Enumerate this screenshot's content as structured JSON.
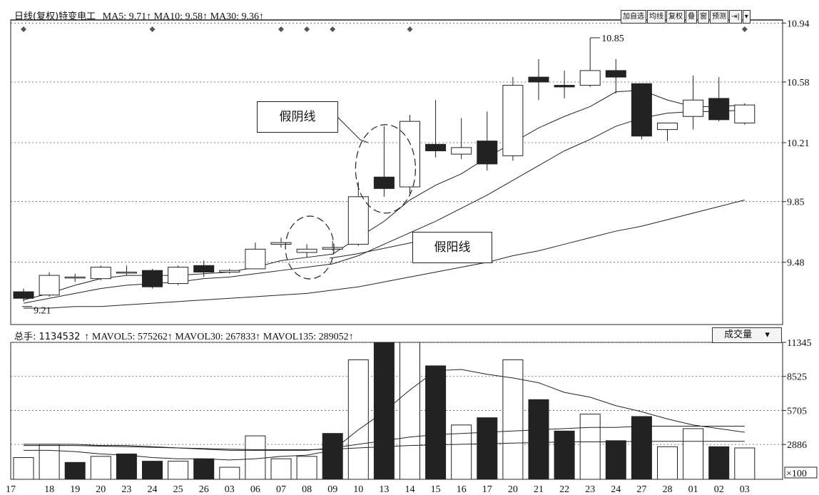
{
  "header": {
    "title": "日线(复权)特变电工",
    "ma5": "MA5: 9.71",
    "ma10": "MA10: 9.58",
    "ma30": "MA30: 9.36",
    "arrow": "↑"
  },
  "toolbar": {
    "buttons": [
      "加自选",
      "均线",
      "复权",
      "叠",
      "窗",
      "预测",
      "⇥|",
      "▾"
    ]
  },
  "volume_header": {
    "total": "总手: 1134532",
    "mavol5": "MAVOL5: 575262",
    "mavol30": "MAVOL30: 267833",
    "mavol135": "MAVOL135: 289052",
    "arrow": "↑",
    "selector_label": "成交量",
    "selector_arrow": "▾"
  },
  "annotations": {
    "fake_bear": "假阴线",
    "fake_bull": "假阳线",
    "high_label": "10.85",
    "low_label": "9.21"
  },
  "colors": {
    "bear_fill": "#222222",
    "bull_fill": "#ffffff",
    "line": "#222222",
    "grid": "#555555"
  },
  "chart_data": [
    {
      "type": "candlestick",
      "title": "",
      "categories": [
        "18",
        "19",
        "20",
        "23",
        "24",
        "25",
        "26",
        "03",
        "06",
        "07",
        "08",
        "09",
        "10",
        "13",
        "14",
        "15",
        "16",
        "17",
        "20",
        "21",
        "22",
        "23",
        "24",
        "27",
        "28",
        "01",
        "02",
        "03"
      ],
      "first_partial_tick": "17",
      "y_ticks": [
        10.94,
        10.58,
        10.21,
        9.85,
        9.48
      ],
      "ylim": [
        9.1,
        10.95
      ],
      "ohlc": [
        {
          "o": 9.3,
          "h": 9.32,
          "l": 9.24,
          "c": 9.26
        },
        {
          "o": 9.28,
          "h": 9.42,
          "l": 9.27,
          "c": 9.4
        },
        {
          "o": 9.39,
          "h": 9.41,
          "l": 9.36,
          "c": 9.39
        },
        {
          "o": 9.38,
          "h": 9.46,
          "l": 9.37,
          "c": 9.45
        },
        {
          "o": 9.42,
          "h": 9.46,
          "l": 9.4,
          "c": 9.42
        },
        {
          "o": 9.43,
          "h": 9.44,
          "l": 9.32,
          "c": 9.33
        },
        {
          "o": 9.35,
          "h": 9.46,
          "l": 9.34,
          "c": 9.45
        },
        {
          "o": 9.46,
          "h": 9.49,
          "l": 9.39,
          "c": 9.42
        },
        {
          "o": 9.42,
          "h": 9.44,
          "l": 9.41,
          "c": 9.43
        },
        {
          "o": 9.44,
          "h": 9.6,
          "l": 9.44,
          "c": 9.56
        },
        {
          "o": 9.59,
          "h": 9.63,
          "l": 9.57,
          "c": 9.6
        },
        {
          "o": 9.54,
          "h": 9.59,
          "l": 9.51,
          "c": 9.56
        },
        {
          "o": 9.56,
          "h": 9.61,
          "l": 9.55,
          "c": 9.57
        },
        {
          "o": 9.59,
          "h": 9.97,
          "l": 9.58,
          "c": 9.88
        },
        {
          "o": 10.0,
          "h": 10.31,
          "l": 9.88,
          "c": 9.93
        },
        {
          "o": 9.94,
          "h": 10.38,
          "l": 9.9,
          "c": 10.34
        },
        {
          "o": 10.2,
          "h": 10.47,
          "l": 10.12,
          "c": 10.16
        },
        {
          "o": 10.14,
          "h": 10.36,
          "l": 10.11,
          "c": 10.18
        },
        {
          "o": 10.22,
          "h": 10.4,
          "l": 10.04,
          "c": 10.08
        },
        {
          "o": 10.13,
          "h": 10.61,
          "l": 10.1,
          "c": 10.56
        },
        {
          "o": 10.61,
          "h": 10.72,
          "l": 10.47,
          "c": 10.58
        },
        {
          "o": 10.56,
          "h": 10.65,
          "l": 10.48,
          "c": 10.55
        },
        {
          "o": 10.56,
          "h": 10.85,
          "l": 10.55,
          "c": 10.65
        },
        {
          "o": 10.65,
          "h": 10.72,
          "l": 10.51,
          "c": 10.61
        },
        {
          "o": 10.57,
          "h": 10.57,
          "l": 10.23,
          "c": 10.25
        },
        {
          "o": 10.29,
          "h": 10.33,
          "l": 10.22,
          "c": 10.33
        },
        {
          "o": 10.37,
          "h": 10.62,
          "l": 10.29,
          "c": 10.47
        },
        {
          "o": 10.48,
          "h": 10.61,
          "l": 10.34,
          "c": 10.35
        },
        {
          "o": 10.33,
          "h": 10.45,
          "l": 10.32,
          "c": 10.44
        }
      ],
      "ma_lines": [
        [
          9.25,
          9.29,
          9.34,
          9.38,
          9.4,
          9.4,
          9.4,
          9.41,
          9.42,
          9.45,
          9.49,
          9.51,
          9.53,
          9.63,
          9.73,
          9.86,
          9.95,
          10.02,
          10.12,
          10.21,
          10.3,
          10.37,
          10.43,
          10.52,
          10.53,
          10.47,
          10.43,
          10.43,
          10.44
        ],
        [
          9.23,
          9.26,
          9.29,
          9.32,
          9.34,
          9.35,
          9.36,
          9.38,
          9.39,
          9.41,
          9.43,
          9.45,
          9.47,
          9.52,
          9.59,
          9.66,
          9.73,
          9.81,
          9.89,
          9.98,
          10.07,
          10.16,
          10.23,
          10.31,
          10.36,
          10.39,
          10.4,
          10.4,
          10.41
        ],
        [
          9.2,
          9.2,
          9.21,
          9.21,
          9.22,
          9.23,
          9.24,
          9.25,
          9.26,
          9.27,
          9.28,
          9.29,
          9.31,
          9.33,
          9.36,
          9.39,
          9.42,
          9.45,
          9.48,
          9.52,
          9.55,
          9.59,
          9.63,
          9.67,
          9.7,
          9.74,
          9.78,
          9.82,
          9.86
        ]
      ]
    },
    {
      "type": "bar",
      "title": "",
      "y_ticks": [
        11345,
        8525,
        5705,
        2886
      ],
      "y_unit": "×100",
      "ylim": [
        0,
        11345
      ],
      "values": [
        1800,
        2900,
        1400,
        1900,
        2100,
        1500,
        1500,
        1700,
        1000,
        3600,
        1700,
        1900,
        3800,
        9900,
        11345,
        11345,
        9400,
        4500,
        5100,
        9900,
        6600,
        4000,
        5400,
        3200,
        5200,
        2700,
        4200,
        2700,
        2600
      ],
      "bear": [
        false,
        false,
        true,
        false,
        true,
        true,
        false,
        true,
        false,
        false,
        false,
        false,
        true,
        false,
        true,
        false,
        true,
        false,
        true,
        false,
        true,
        true,
        false,
        true,
        true,
        false,
        false,
        true,
        false
      ],
      "ma_lines": [
        [
          2400,
          2400,
          2300,
          2100,
          2000,
          1800,
          1700,
          1700,
          1600,
          1700,
          1900,
          2000,
          2400,
          4100,
          5600,
          7400,
          9000,
          9100,
          8700,
          8400,
          8000,
          7200,
          6800,
          6100,
          5600,
          5000,
          4500,
          4200,
          3900
        ],
        [
          2900,
          2900,
          2900,
          2800,
          2800,
          2700,
          2600,
          2500,
          2400,
          2400,
          2400,
          2400,
          2600,
          2900,
          3200,
          3500,
          3700,
          3800,
          3900,
          4000,
          4100,
          4200,
          4300,
          4300,
          4400,
          4400,
          4400,
          4400,
          4400
        ],
        [
          2800,
          2800,
          2800,
          2750,
          2700,
          2650,
          2600,
          2550,
          2500,
          2450,
          2450,
          2450,
          2500,
          2600,
          2700,
          2800,
          2850,
          2900,
          2950,
          3000,
          3050,
          3100,
          3100,
          3100,
          3150,
          3150,
          3150,
          3150,
          3150
        ]
      ]
    }
  ]
}
